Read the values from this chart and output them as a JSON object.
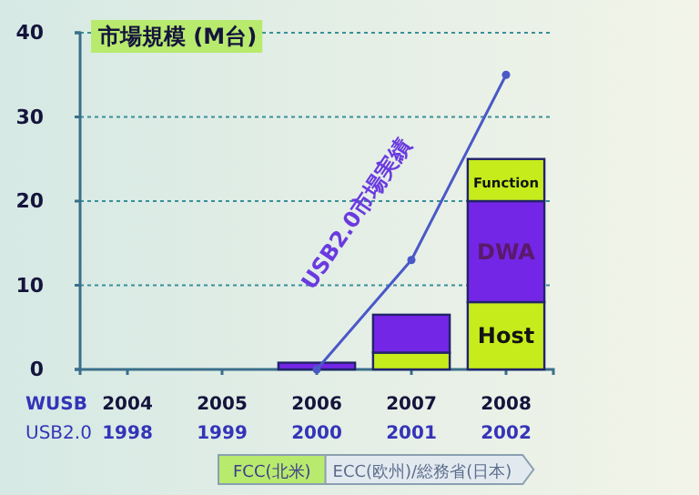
{
  "chart_data": {
    "type": "bar",
    "title": "市場規模 (M台)",
    "categories": [
      "2004\n1998",
      "2005\n1999",
      "2006\n2000",
      "2007\n2001",
      "2008\n2002"
    ],
    "stacked": true,
    "ylim": [
      0,
      40
    ],
    "yticks": [
      0,
      10,
      20,
      30,
      40
    ],
    "grid": "y",
    "series": [
      {
        "name": "Host",
        "color": "#c6ec1c",
        "values": [
          null,
          null,
          0,
          2,
          8
        ]
      },
      {
        "name": "DWA",
        "color": "#7426e6",
        "values": [
          null,
          null,
          0.8,
          4.5,
          12
        ]
      },
      {
        "name": "Function",
        "color": "#c6ec1c",
        "values": [
          null,
          null,
          0,
          0,
          5
        ]
      },
      {
        "name": "USB2.0市場実績",
        "type": "line",
        "color": "#4a58c8",
        "marker": "circle",
        "values": [
          null,
          null,
          0,
          13,
          35
        ]
      }
    ],
    "annotations": [
      "WUSB",
      "USB2.0",
      "FCC(北米)",
      "ECC(欧州)/総務省(日本)"
    ]
  }
}
